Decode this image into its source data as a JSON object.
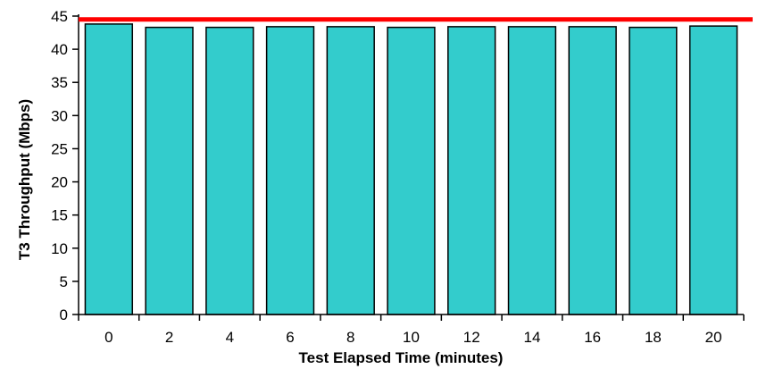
{
  "chart_data": {
    "type": "bar",
    "title": "",
    "xlabel": "Test Elapsed Time (minutes)",
    "ylabel": "T3 Throughput (Mbps)",
    "categories": [
      "0",
      "2",
      "4",
      "6",
      "8",
      "10",
      "12",
      "14",
      "16",
      "18",
      "20"
    ],
    "values": [
      43.8,
      43.3,
      43.3,
      43.4,
      43.4,
      43.3,
      43.4,
      43.4,
      43.4,
      43.3,
      43.5
    ],
    "ylim": [
      0,
      45
    ],
    "yticks": [
      "0",
      "5",
      "10",
      "15",
      "20",
      "25",
      "30",
      "35",
      "40",
      "45"
    ],
    "reference_line": {
      "value": 44.5,
      "color": "#ff0000"
    },
    "bar_color": "#33cccc",
    "grid": false,
    "legend": "none"
  }
}
